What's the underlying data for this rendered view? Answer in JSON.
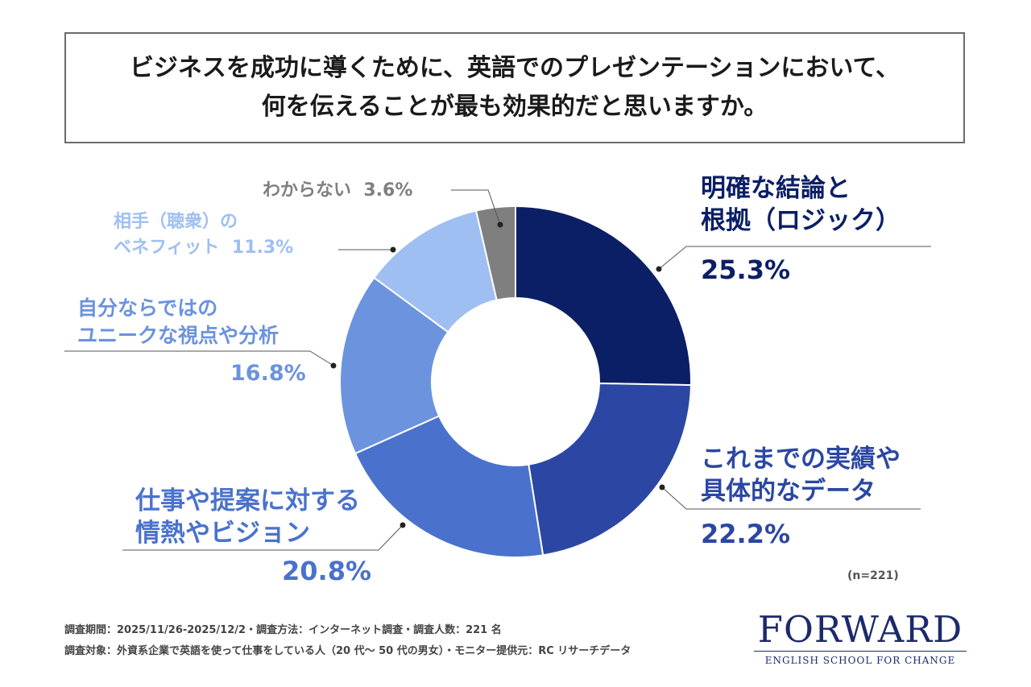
{
  "title": {
    "line1": "ビジネスを成功に導くために、英語でのプレゼンテーションにおいて、",
    "line2": "何を伝えることが最も効果的だと思いますか。"
  },
  "chart_data": {
    "type": "pie",
    "donut": true,
    "sample_size_label": "(n=221)",
    "slices": [
      {
        "label_lines": [
          "明確な結論と",
          "根拠（ロジック）"
        ],
        "value": 25.3,
        "value_label": "25.3%",
        "color": "#0b1f66"
      },
      {
        "label_lines": [
          "これまでの実績や",
          "具体的なデータ"
        ],
        "value": 22.2,
        "value_label": "22.2%",
        "color": "#2b47a3"
      },
      {
        "label_lines": [
          "仕事や提案に対する",
          "情熱やビジョン"
        ],
        "value": 20.8,
        "value_label": "20.8%",
        "color": "#4a72cc"
      },
      {
        "label_lines": [
          "自分ならではの",
          "ユニークな視点や分析"
        ],
        "value": 16.8,
        "value_label": "16.8%",
        "color": "#6b93de"
      },
      {
        "label_lines": [
          "相手（聴衆）の",
          "ベネフィット"
        ],
        "value": 11.3,
        "value_label": "11.3%",
        "color": "#9fbff2"
      },
      {
        "label_lines": [
          "わからない"
        ],
        "value": 3.6,
        "value_label": "3.6%",
        "color": "#7f7f7f"
      }
    ]
  },
  "footnotes": {
    "line1": "調査期間：2025/11/26-2025/12/2・調査方法：インターネット調査・調査人数：221 名",
    "line2": "調査対象：外資系企業で英語を使って仕事をしている人（20 代～ 50 代の男女）・モニター提供元：RC リサーチデータ"
  },
  "logo": {
    "word": "FORWARD",
    "subtitle": "ENGLISH SCHOOL FOR CHANGE"
  }
}
